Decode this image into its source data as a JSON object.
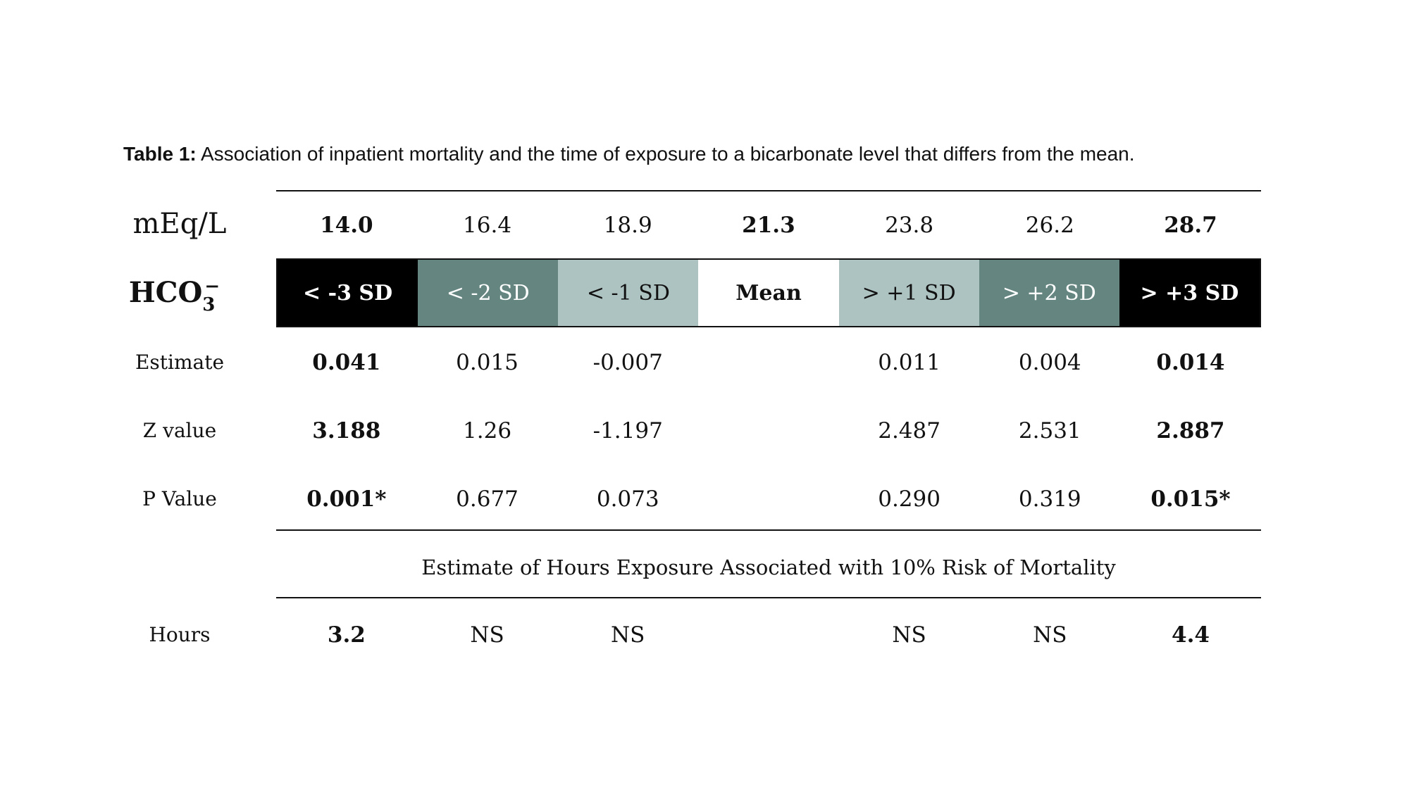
{
  "caption": {
    "label": "Table 1:",
    "text": "Association of inpatient mortality and the time of exposure to a bicarbonate level that differs from the mean."
  },
  "row_labels": {
    "units": "mEq/L",
    "hco3_base": "HCO",
    "hco3_sub": "3",
    "hco3_sup": "−",
    "estimate": "Estimate",
    "z_value": "Z value",
    "p_value": "P Value",
    "hours": "Hours"
  },
  "meq_values": [
    "14.0",
    "16.4",
    "18.9",
    "21.3",
    "23.8",
    "26.2",
    "28.7"
  ],
  "bands": [
    {
      "label": "< -3 SD",
      "bg": "#000000",
      "fg": "#ffffff"
    },
    {
      "label": "< -2 SD",
      "bg": "#648580",
      "fg": "#ffffff"
    },
    {
      "label": "< -1 SD",
      "bg": "#adc3c2",
      "fg": "#111111"
    },
    {
      "label": "Mean",
      "bg": "#ffffff",
      "fg": "#111111"
    },
    {
      "label": "> +1 SD",
      "bg": "#adc3c2",
      "fg": "#111111"
    },
    {
      "label": "> +2 SD",
      "bg": "#648580",
      "fg": "#ffffff"
    },
    {
      "label": "> +3 SD",
      "bg": "#000000",
      "fg": "#ffffff"
    }
  ],
  "estimates": [
    "0.041",
    "0.015",
    "-0.007",
    "",
    "0.011",
    "0.004",
    "0.014"
  ],
  "z_values": [
    "3.188",
    "1.26",
    "-1.197",
    "",
    "2.487",
    "2.531",
    "2.887"
  ],
  "p_values": [
    "0.001*",
    "0.677",
    "0.073",
    "",
    "0.290",
    "0.319",
    "0.015*"
  ],
  "section_title": "Estimate of Hours Exposure Associated with 10% Risk of Mortality",
  "hours": [
    "3.2",
    "NS",
    "NS",
    "",
    "NS",
    "NS",
    "4.4"
  ]
}
